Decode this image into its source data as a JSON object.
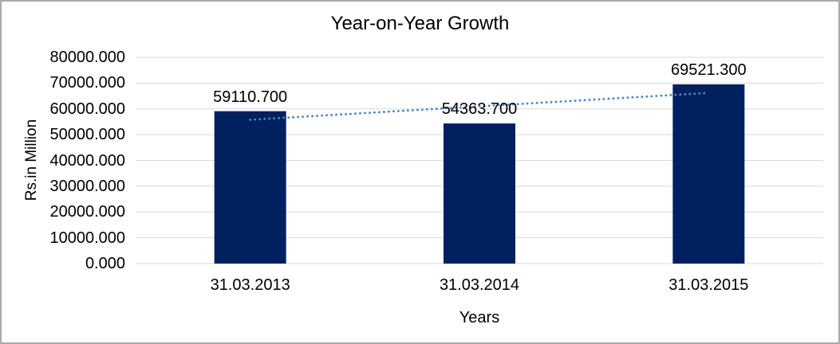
{
  "window": {
    "background_color": "#ffffff",
    "border_color": "#a9a9a9"
  },
  "chart_data": {
    "type": "bar",
    "title": "Year-on-Year Growth",
    "xlabel": "Years",
    "ylabel": "Rs.in Million",
    "categories": [
      "31.03.2013",
      "31.03.2014",
      "31.03.2015"
    ],
    "values": [
      59110.7,
      54363.7,
      69521.3
    ],
    "value_labels": [
      "59110.700",
      "54363.700",
      "69521.300"
    ],
    "ylim": [
      0,
      80000
    ],
    "ytick_step": 10000,
    "ytick_labels": [
      "0.000",
      "10000.000",
      "20000.000",
      "30000.000",
      "40000.000",
      "50000.000",
      "60000.000",
      "70000.000",
      "80000.000"
    ],
    "grid": "horizontal",
    "gridline_color": "#d9d9d9",
    "legend": "none",
    "bar_color": "#002060",
    "text_color": "#000000",
    "trendline": {
      "type": "linear",
      "style": "dotted",
      "color": "#4a86c8",
      "start_value": 55793.3,
      "end_value": 66203.9
    }
  }
}
